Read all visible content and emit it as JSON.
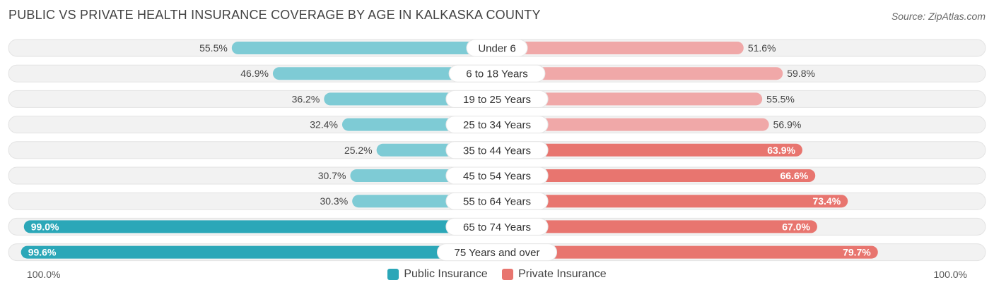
{
  "header": {
    "title": "PUBLIC VS PRIVATE HEALTH INSURANCE COVERAGE BY AGE IN KALKASKA COUNTY",
    "source": "Source: ZipAtlas.com"
  },
  "axis": {
    "left_label": "100.0%",
    "right_label": "100.0%"
  },
  "colors": {
    "public": "#7ecbd5",
    "public_strong": "#2ba7b8",
    "private": "#f0a8a8",
    "private_strong": "#e8756f",
    "track": "#f2f2f2"
  },
  "chart_data": {
    "type": "bar",
    "categories": [
      "Under 6",
      "6 to 18 Years",
      "19 to 25 Years",
      "25 to 34 Years",
      "35 to 44 Years",
      "45 to 54 Years",
      "55 to 64 Years",
      "65 to 74 Years",
      "75 Years and over"
    ],
    "series": [
      {
        "name": "Public Insurance",
        "values": [
          55.5,
          46.9,
          36.2,
          32.4,
          25.2,
          30.7,
          30.3,
          99.0,
          99.6
        ],
        "labels": [
          "55.5%",
          "46.9%",
          "36.2%",
          "32.4%",
          "25.2%",
          "30.7%",
          "30.3%",
          "99.0%",
          "99.6%"
        ]
      },
      {
        "name": "Private Insurance",
        "values": [
          51.6,
          59.8,
          55.5,
          56.9,
          63.9,
          66.6,
          73.4,
          67.0,
          79.7
        ],
        "labels": [
          "51.6%",
          "59.8%",
          "55.5%",
          "56.9%",
          "63.9%",
          "66.6%",
          "73.4%",
          "67.0%",
          "79.7%"
        ]
      }
    ],
    "xlim": [
      -100,
      100
    ],
    "legend": "bottom-center"
  }
}
